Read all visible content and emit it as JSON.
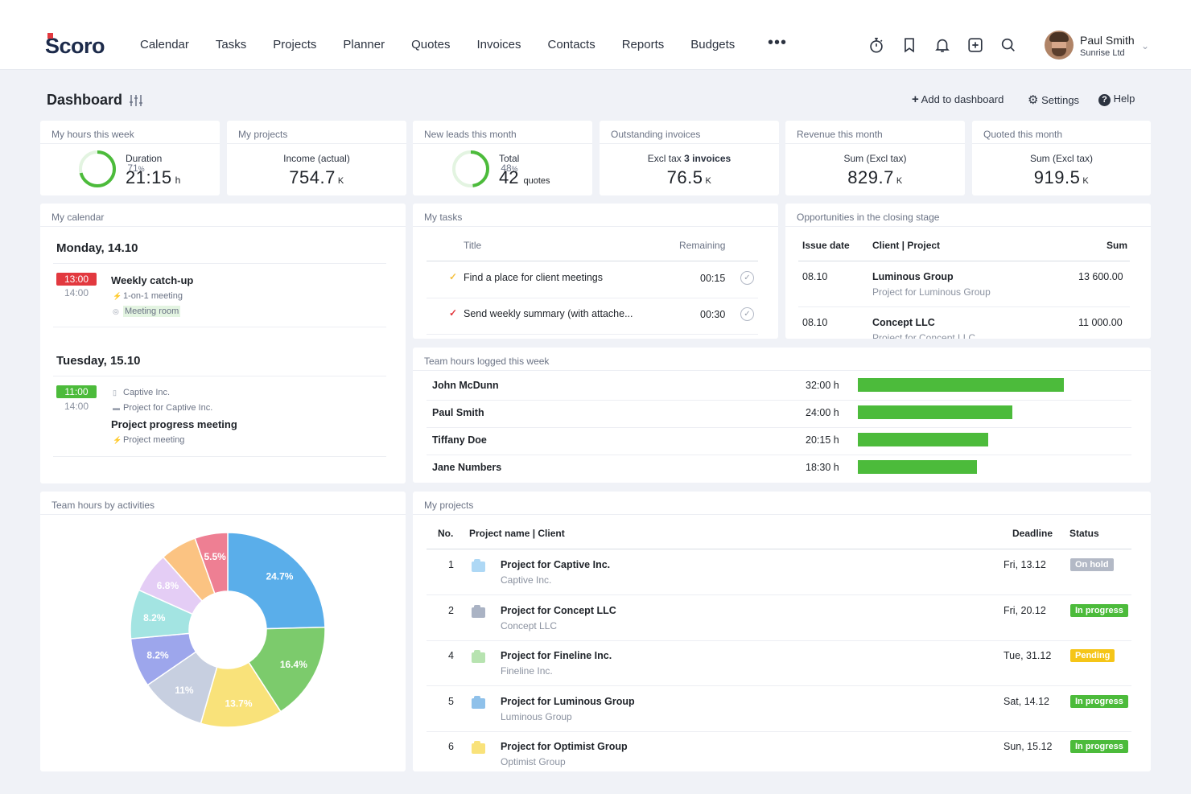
{
  "nav": {
    "logo": "Scoro",
    "items": [
      "Calendar",
      "Tasks",
      "Projects",
      "Planner",
      "Quotes",
      "Invoices",
      "Contacts",
      "Reports",
      "Budgets"
    ],
    "more": "•••",
    "icons": [
      "stopwatch-icon",
      "bookmark-icon",
      "bell-icon",
      "add-icon",
      "search-icon"
    ],
    "user": {
      "name": "Paul Smith",
      "company": "Sunrise Ltd"
    }
  },
  "dashboard": {
    "title": "Dashboard",
    "add_label": "Add to dashboard",
    "settings_label": "Settings",
    "help_label": "Help"
  },
  "kpis": {
    "hours": {
      "title": "My hours this week",
      "label": "Duration",
      "value": "21:15",
      "unit": "h",
      "percent": "71",
      "percent_sign": "%",
      "fraction": 0.71
    },
    "projects": {
      "title": "My projects",
      "label": "Income (actual)",
      "value": "754.7",
      "unit": "K"
    },
    "leads": {
      "title": "New leads this month",
      "label": "Total",
      "value": "42",
      "unit": "quotes",
      "percent": "48",
      "percent_sign": "%",
      "fraction": 0.48
    },
    "invoices": {
      "title": "Outstanding invoices",
      "label_prefix": "Excl tax",
      "label_bold": "3 invoices",
      "value": "76.5",
      "unit": "K"
    },
    "revenue": {
      "title": "Revenue this month",
      "label": "Sum (Excl tax)",
      "value": "829.7",
      "unit": "K"
    },
    "quoted": {
      "title": "Quoted this month",
      "label": "Sum (Excl tax)",
      "value": "919.5",
      "unit": "K"
    }
  },
  "calendar": {
    "title": "My calendar",
    "days": [
      {
        "day": "Monday, 14.10",
        "start": "13:00",
        "end": "14:00",
        "event": "Weekly catch-up",
        "type": "1-on-1 meeting",
        "room": "Meeting room"
      },
      {
        "day": "Tuesday, 15.10",
        "start": "11:00",
        "end": "14:00",
        "client": "Captive Inc.",
        "project": "Project for Captive Inc.",
        "event": "Project progress meeting",
        "type": "Project meeting"
      }
    ]
  },
  "tasks": {
    "title": "My tasks",
    "col_title": "Title",
    "col_remaining": "Remaining",
    "rows": [
      {
        "title": "Find a place for client meetings",
        "remaining": "00:15",
        "check_color": "#f5c142"
      },
      {
        "title": "Send weekly summary (with attache...",
        "remaining": "00:30",
        "check_color": "#e2393f"
      }
    ]
  },
  "opportunities": {
    "title": "Opportunities in the closing stage",
    "col_date": "Issue date",
    "col_client": "Client | Project",
    "col_sum": "Sum",
    "rows": [
      {
        "date": "08.10",
        "client": "Luminous Group",
        "project": "Project for Luminous Group",
        "sum": "13 600.00"
      },
      {
        "date": "08.10",
        "client": "Concept LLC",
        "project": "Project for Concept LLC",
        "sum": "11 000.00"
      }
    ]
  },
  "team_hours": {
    "title": "Team hours logged this week",
    "rows": [
      {
        "name": "John McDunn",
        "hours_label": "32:00 h",
        "hours": 32.0
      },
      {
        "name": "Paul Smith",
        "hours_label": "24:00 h",
        "hours": 24.0
      },
      {
        "name": "Tiffany Doe",
        "hours_label": "20:15 h",
        "hours": 20.25
      },
      {
        "name": "Jane Numbers",
        "hours_label": "18:30 h",
        "hours": 18.5
      }
    ],
    "bar_color": "#4cbb3b"
  },
  "activities": {
    "title": "Team hours by activities"
  },
  "chart_data": {
    "type": "pie",
    "title": "Team hours by activities",
    "values": [
      24.7,
      16.4,
      13.7,
      11,
      8.2,
      8.2,
      6.8,
      6.1,
      5.5
    ],
    "labels": [
      "24.7%",
      "16.4%",
      "13.7%",
      "11%",
      "8.2%",
      "8.2%",
      "6.8%",
      "",
      "5.5%"
    ],
    "colors": [
      "#5aaeea",
      "#7ccb6c",
      "#f9e27a",
      "#c7cfe0",
      "#9da6ec",
      "#a3e4e2",
      "#e4cdf5",
      "#fbc382",
      "#ee7f93"
    ],
    "donut": true
  },
  "my_projects": {
    "title": "My projects",
    "col_no": "No.",
    "col_name": "Project name | Client",
    "col_deadline": "Deadline",
    "col_status": "Status",
    "rows": [
      {
        "no": "1",
        "name": "Project for Captive Inc.",
        "client": "Captive Inc.",
        "deadline": "Fri, 13.12",
        "status": "On hold",
        "status_color": "#b3b9c6",
        "folder_color": "#aed8f5"
      },
      {
        "no": "2",
        "name": "Project for Concept LLC",
        "client": "Concept LLC",
        "deadline": "Fri, 20.12",
        "status": "In progress",
        "status_color": "#4cbb3b",
        "folder_color": "#aab3c4"
      },
      {
        "no": "4",
        "name": "Project for Fineline Inc.",
        "client": "Fineline Inc.",
        "deadline": "Tue, 31.12",
        "status": "Pending",
        "status_color": "#f5c518",
        "folder_color": "#b7e3b0"
      },
      {
        "no": "5",
        "name": "Project for Luminous Group",
        "client": "Luminous Group",
        "deadline": "Sat, 14.12",
        "status": "In progress",
        "status_color": "#4cbb3b",
        "folder_color": "#8fc1ea"
      },
      {
        "no": "6",
        "name": "Project for Optimist Group",
        "client": "Optimist Group",
        "deadline": "Sun, 15.12",
        "status": "In progress",
        "status_color": "#4cbb3b",
        "folder_color": "#f9e27a"
      }
    ]
  }
}
